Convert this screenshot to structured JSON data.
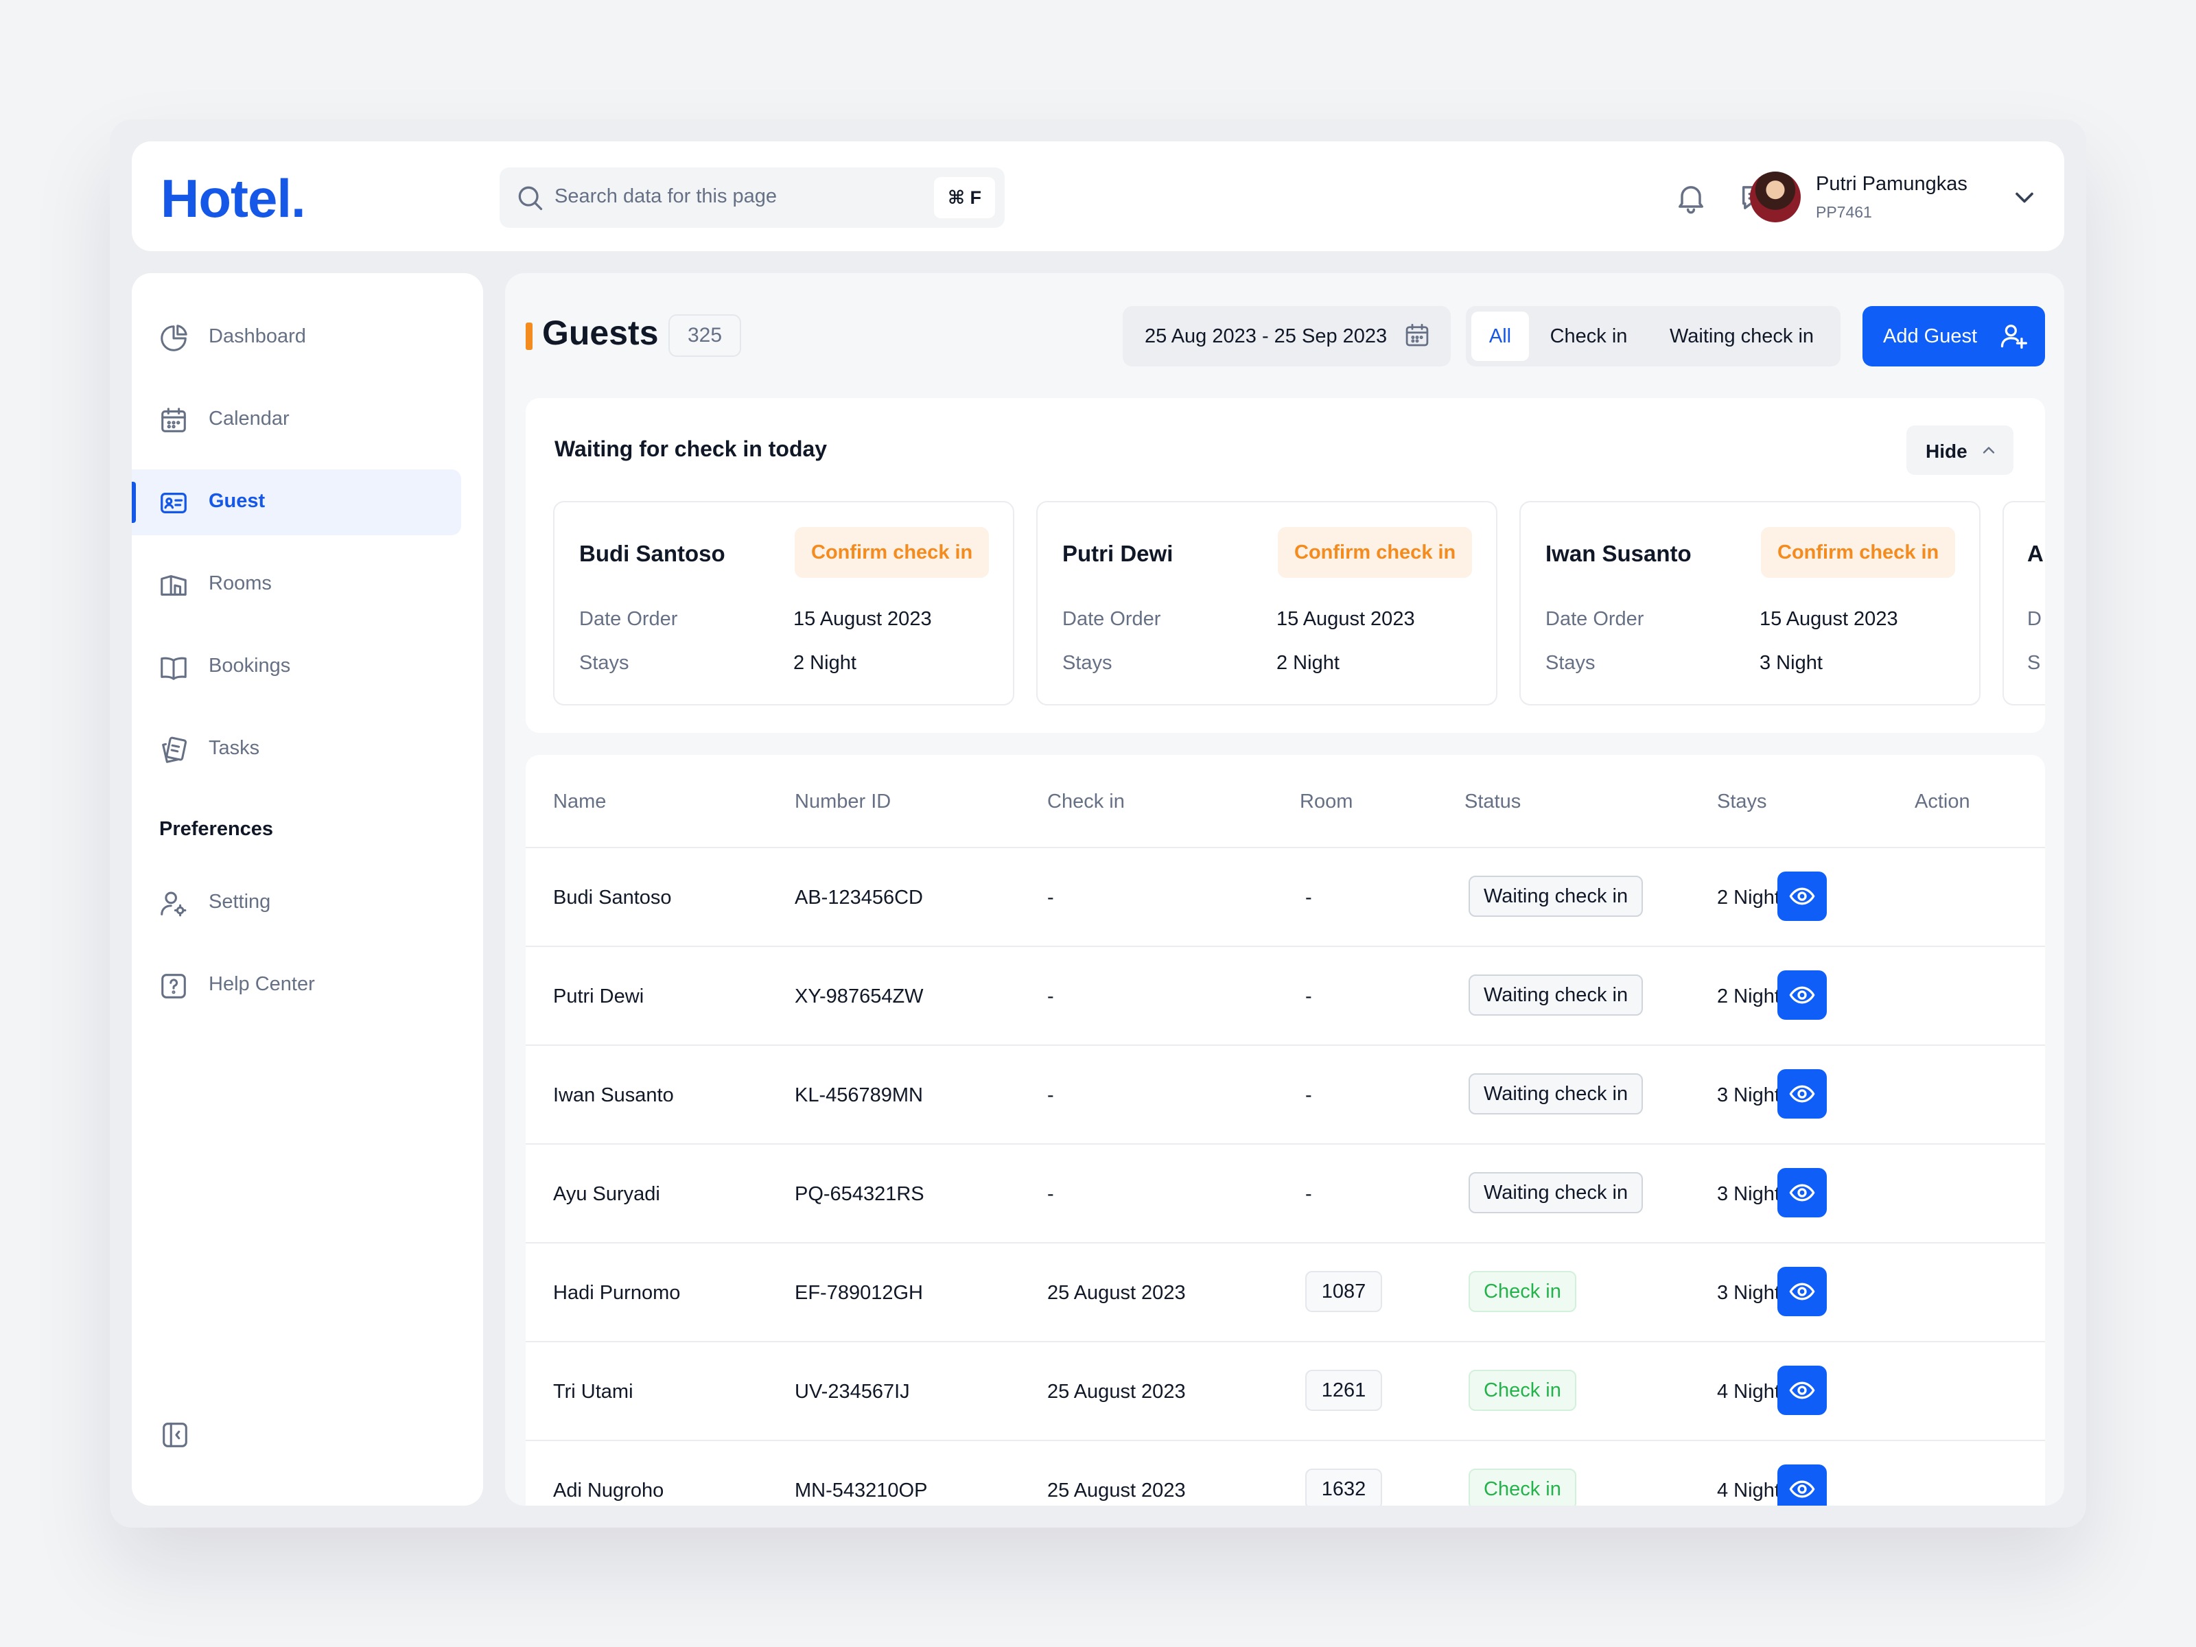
{
  "app": {
    "logo": "Hotel."
  },
  "search": {
    "placeholder": "Search data for this page",
    "shortcut": "⌘ F"
  },
  "user": {
    "name": "Putri Pamungkas",
    "id": "PP7461"
  },
  "sidebar": {
    "items": [
      {
        "label": "Dashboard",
        "icon": "pie-chart-icon"
      },
      {
        "label": "Calendar",
        "icon": "calendar-icon"
      },
      {
        "label": "Guest",
        "icon": "guest-card-icon",
        "active": true
      },
      {
        "label": "Rooms",
        "icon": "rooms-icon"
      },
      {
        "label": "Bookings",
        "icon": "book-icon"
      },
      {
        "label": "Tasks",
        "icon": "tasks-icon"
      }
    ],
    "preferences_heading": "Preferences",
    "pref_items": [
      {
        "label": "Setting",
        "icon": "user-settings-icon"
      },
      {
        "label": "Help Center",
        "icon": "help-icon"
      }
    ]
  },
  "header": {
    "title": "Guests",
    "count": "325",
    "date_range": "25 Aug 2023 - 25 Sep 2023",
    "filters": [
      "All",
      "Check in",
      "Waiting check in"
    ],
    "active_filter": "All",
    "add_label": "Add Guest"
  },
  "waiting": {
    "title": "Waiting for check in today",
    "hide_label": "Hide",
    "confirm_label": "Confirm check in",
    "date_label": "Date Order",
    "stays_label": "Stays",
    "cards": [
      {
        "name": "Budi Santoso",
        "date": "15 August 2023",
        "stays": "2 Night"
      },
      {
        "name": "Putri Dewi",
        "date": "15 August 2023",
        "stays": "2 Night"
      },
      {
        "name": "Iwan Susanto",
        "date": "15 August 2023",
        "stays": "3 Night"
      },
      {
        "name": "A",
        "date": "D",
        "stays": "S",
        "date_label": "D",
        "stays_label": "S"
      }
    ]
  },
  "table": {
    "columns": [
      "Name",
      "Number ID",
      "Check in",
      "Room",
      "Status",
      "Stays",
      "Action"
    ],
    "rows": [
      {
        "name": "Budi Santoso",
        "id": "AB-123456CD",
        "checkin": "-",
        "room": "-",
        "status": "Waiting check in",
        "stays": "2 Night"
      },
      {
        "name": "Putri Dewi",
        "id": "XY-987654ZW",
        "checkin": "-",
        "room": "-",
        "status": "Waiting check in",
        "stays": "2 Night"
      },
      {
        "name": "Iwan Susanto",
        "id": "KL-456789MN",
        "checkin": "-",
        "room": "-",
        "status": "Waiting check in",
        "stays": "3 Night"
      },
      {
        "name": "Ayu Suryadi",
        "id": "PQ-654321RS",
        "checkin": "-",
        "room": "-",
        "status": "Waiting check in",
        "stays": "3 Night"
      },
      {
        "name": "Hadi Purnomo",
        "id": "EF-789012GH",
        "checkin": "25 August 2023",
        "room": "1087",
        "status": "Check in",
        "stays": "3 Night"
      },
      {
        "name": "Tri Utami",
        "id": "UV-234567IJ",
        "checkin": "25 August 2023",
        "room": "1261",
        "status": "Check in",
        "stays": "4 Night"
      },
      {
        "name": "Adi Nugroho",
        "id": "MN-543210OP",
        "checkin": "25 August 2023",
        "room": "1632",
        "status": "Check in",
        "stays": "4 Night"
      }
    ]
  },
  "colors": {
    "accent": "#0e5ef7",
    "brand": "#1557e6",
    "warning": "#f38b1f",
    "success": "#24b24b"
  }
}
